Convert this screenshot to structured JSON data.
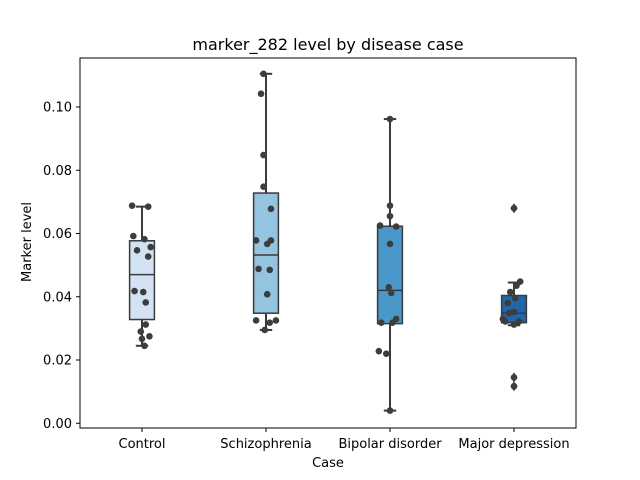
{
  "chart_data": {
    "type": "box",
    "title": "marker_282 level by disease case",
    "xlabel": "Case",
    "ylabel": "Marker level",
    "ylim": [
      -0.0015,
      0.1155
    ],
    "yticks": [
      0.0,
      0.02,
      0.04,
      0.06,
      0.08,
      0.1
    ],
    "ytick_labels": [
      "0.00",
      "0.02",
      "0.04",
      "0.06",
      "0.08",
      "0.10"
    ],
    "grid": false,
    "categories": [
      "Control",
      "Schizophrenia",
      "Bipolar disorder",
      "Major depression"
    ],
    "colors": [
      "#d3e3f3",
      "#94c4df",
      "#4a98c9",
      "#2166ac"
    ],
    "boxes": [
      {
        "whislo": 0.0245,
        "q1": 0.0328,
        "med": 0.047,
        "q3": 0.0577,
        "whishi": 0.0685,
        "fliers": []
      },
      {
        "whislo": 0.0295,
        "q1": 0.0348,
        "med": 0.0532,
        "q3": 0.0728,
        "whishi": 0.1105,
        "fliers": []
      },
      {
        "whislo": 0.004,
        "q1": 0.0315,
        "med": 0.042,
        "q3": 0.0623,
        "whishi": 0.0962,
        "fliers": []
      },
      {
        "whislo": 0.031,
        "q1": 0.0318,
        "med": 0.0348,
        "q3": 0.0404,
        "whishi": 0.0445,
        "fliers": [
          0.068,
          0.0145,
          0.0117
        ]
      }
    ],
    "points": [
      [
        [
          -0.08,
          0.0688
        ],
        [
          0.05,
          0.0685
        ],
        [
          -0.07,
          0.0592
        ],
        [
          0.02,
          0.0582
        ],
        [
          0.07,
          0.0557
        ],
        [
          -0.04,
          0.0547
        ],
        [
          0.05,
          0.0527
        ],
        [
          -0.06,
          0.0418
        ],
        [
          0.01,
          0.0415
        ],
        [
          0.03,
          0.0382
        ],
        [
          0.03,
          0.0312
        ],
        [
          -0.01,
          0.029
        ],
        [
          0.06,
          0.0275
        ],
        [
          0.0,
          0.0267
        ],
        [
          0.02,
          0.0245
        ]
      ],
      [
        [
          -0.02,
          0.1105
        ],
        [
          -0.04,
          0.1042
        ],
        [
          -0.02,
          0.0848
        ],
        [
          -0.02,
          0.0748
        ],
        [
          0.04,
          0.0678
        ],
        [
          0.04,
          0.0578
        ],
        [
          -0.08,
          0.0578
        ],
        [
          0.01,
          0.0567
        ],
        [
          -0.06,
          0.0488
        ],
        [
          0.03,
          0.0485
        ],
        [
          0.01,
          0.0408
        ],
        [
          -0.08,
          0.0325
        ],
        [
          0.08,
          0.0325
        ],
        [
          0.03,
          0.0318
        ],
        [
          -0.01,
          0.0295
        ]
      ],
      [
        [
          0.0,
          0.0962
        ],
        [
          0.0,
          0.0688
        ],
        [
          0.0,
          0.0655
        ],
        [
          -0.08,
          0.0625
        ],
        [
          0.05,
          0.0622
        ],
        [
          0.0,
          0.0567
        ],
        [
          -0.01,
          0.043
        ],
        [
          0.01,
          0.0412
        ],
        [
          0.05,
          0.033
        ],
        [
          -0.07,
          0.0318
        ],
        [
          0.02,
          0.0318
        ],
        [
          -0.09,
          0.0228
        ],
        [
          -0.03,
          0.022
        ],
        [
          0.0,
          0.004
        ]
      ],
      [
        [
          0.0,
          0.068
        ],
        [
          0.05,
          0.0448
        ],
        [
          0.02,
          0.0435
        ],
        [
          -0.03,
          0.0415
        ],
        [
          0.01,
          0.0395
        ],
        [
          -0.05,
          0.038
        ],
        [
          0.0,
          0.0352
        ],
        [
          -0.04,
          0.0348
        ],
        [
          -0.09,
          0.033
        ],
        [
          -0.07,
          0.0322
        ],
        [
          0.04,
          0.0322
        ],
        [
          0.0,
          0.0312
        ],
        [
          0.0,
          0.0145
        ],
        [
          0.0,
          0.0117
        ]
      ]
    ]
  }
}
